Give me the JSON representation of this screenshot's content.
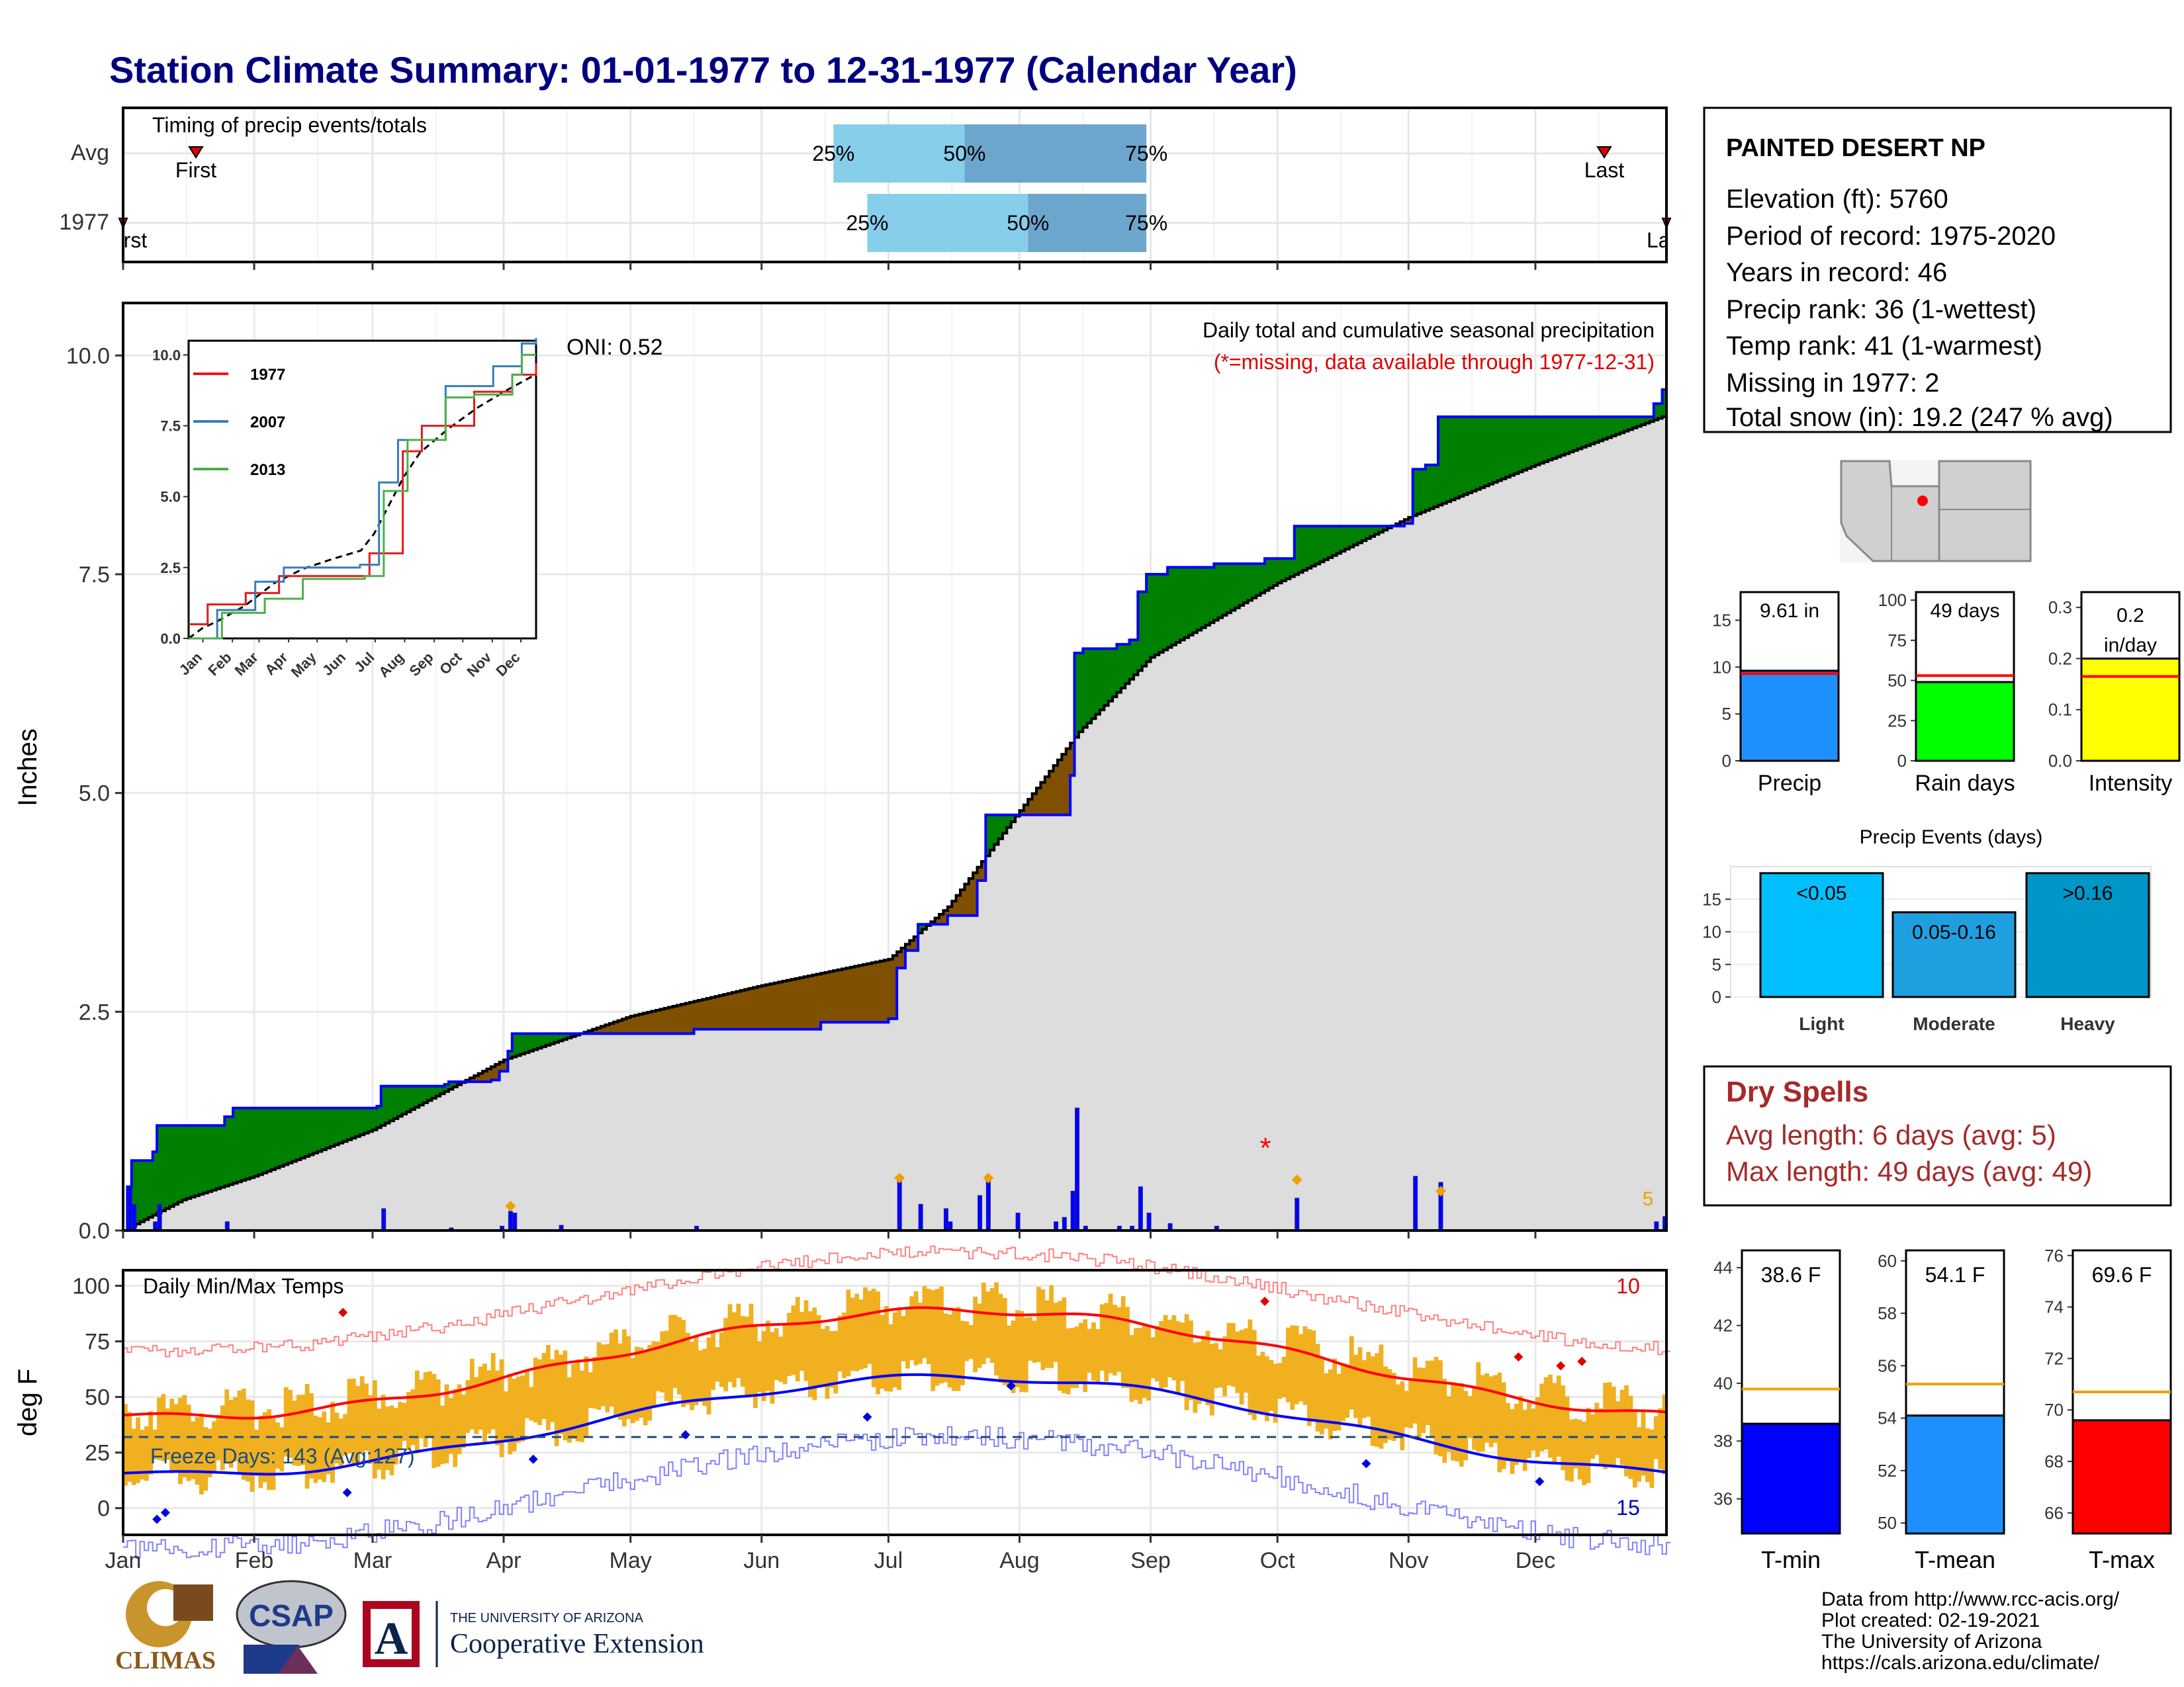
{
  "title": "Station Climate Summary: 01-01-1977 to 12-31-1977 (Calendar Year)",
  "colors": {
    "title": "#00007F",
    "wet": "#008000",
    "dry": "#7F5000",
    "gray": "#DDDDDD",
    "cumline": "#0000FF",
    "normline": "#000000",
    "bar": "#0000FF",
    "pct_light": "#87CEEB",
    "pct_dark": "#6CA6CD",
    "tmax": "#FF0000",
    "tmin": "#0000FF",
    "temp_bar": "#F0B020",
    "freeze": "#1E4E79",
    "dry_spell": "#A52A2A",
    "missing": "#FF0000"
  },
  "timing_panel": {
    "label": "Timing of precip events/totals",
    "rows": [
      {
        "row_label": "Avg",
        "first_label": "First",
        "last_label": "Last",
        "p25_date": "1977-06-18",
        "p50_date": "1977-07-19",
        "p75_date": "1977-08-31"
      },
      {
        "row_label": "1977",
        "first_label": "First",
        "last_label": "Last",
        "p25_date": "1977-06-26",
        "p50_date": "1977-08-03",
        "p75_date": "1977-08-31"
      }
    ],
    "pct_labels": [
      "25%",
      "50%",
      "75%"
    ]
  },
  "precip_panel": {
    "ylabel": "Inches",
    "yticks": [
      "0.0",
      "2.5",
      "5.0",
      "7.5",
      "10.0"
    ],
    "header": "Daily total and cumulative seasonal precipitation",
    "subheader": "(*=missing, data available through 1977-12-31)",
    "oni": "ONI: 0.52",
    "corner_value": "5"
  },
  "inset": {
    "years": [
      "1977",
      "2007",
      "2013"
    ],
    "yticks": [
      "0.0",
      "2.5",
      "5.0",
      "7.5",
      "10.0"
    ],
    "xticks": [
      "Jan",
      "Feb",
      "Mar",
      "Apr",
      "May",
      "Jun",
      "Jul",
      "Aug",
      "Sep",
      "Oct",
      "Nov",
      "Dec"
    ],
    "colors": [
      "#E41A1C",
      "#377EB8",
      "#4DAF4A"
    ]
  },
  "temp_panel": {
    "ylabel": "deg F",
    "title": "Daily Min/Max Temps",
    "yticks": [
      "0",
      "25",
      "50",
      "75",
      "100"
    ],
    "freeze_label": "Freeze Days: 143 (Avg:127)",
    "count_max": "10",
    "count_min": "15"
  },
  "months": [
    "Jan",
    "Feb",
    "Mar",
    "Apr",
    "May",
    "Jun",
    "Jul",
    "Aug",
    "Sep",
    "Oct",
    "Nov",
    "Dec"
  ],
  "station": {
    "name": "PAINTED DESERT NP",
    "lines": [
      "Elevation (ft): 5760",
      "Period of record: 1975-2020",
      "Years in record: 46",
      "Precip rank: 36 (1-wettest)",
      "Temp rank: 41 (1-warmest)",
      "Missing in 1977: 2",
      "Total snow (in): 19.2 (247 % avg)"
    ]
  },
  "gauges": [
    {
      "label": "Precip",
      "value_text": "9.61 in",
      "value": 9.61,
      "avg": 9.3,
      "max": 18,
      "ticks": [
        "0",
        "5",
        "10",
        "15"
      ],
      "tickvals": [
        0,
        5,
        10,
        15
      ],
      "color": "#1E90FF"
    },
    {
      "label": "Rain days",
      "value_text": "49 days",
      "value": 49,
      "avg": 53,
      "max": 105,
      "ticks": [
        "0",
        "25",
        "50",
        "75",
        "100"
      ],
      "tickvals": [
        0,
        25,
        50,
        75,
        100
      ],
      "color": "#00FF00"
    },
    {
      "label": "Intensity",
      "value_text": "0.2 in/day",
      "value": 0.2,
      "avg": 0.165,
      "max": 0.33,
      "ticks": [
        "0.0",
        "0.1",
        "0.2",
        "0.3"
      ],
      "tickvals": [
        0,
        0.1,
        0.2,
        0.3
      ],
      "color": "#FFFF00"
    }
  ],
  "events": {
    "title": "Precip Events (days)",
    "categories": [
      "Light",
      "Moderate",
      "Heavy"
    ],
    "bar_labels": [
      "<0.05",
      "0.05-0.16",
      ">0.16"
    ],
    "values": [
      19,
      13,
      19
    ],
    "ticks": [
      "0",
      "5",
      "10",
      "15"
    ],
    "colors": [
      "#00BFFF",
      "#1E9FE0",
      "#0096C8"
    ]
  },
  "dry_spells": {
    "title": "Dry Spells",
    "avg_line": "Avg length: 6 days (avg: 5)",
    "max_line": "Max length: 49 days (avg: 49)"
  },
  "temp_gauges": [
    {
      "label": "T-min",
      "value_text": "38.6 F",
      "value": 38.6,
      "avg": 39.8,
      "ymin": 34.8,
      "ymax": 44.6,
      "ticks": [
        "36",
        "38",
        "40",
        "42",
        "44"
      ],
      "tickvals": [
        36,
        38,
        40,
        42,
        44
      ],
      "color": "#0000FF"
    },
    {
      "label": "T-mean",
      "value_text": "54.1 F",
      "value": 54.1,
      "avg": 55.3,
      "ymin": 49.6,
      "ymax": 60.4,
      "ticks": [
        "50",
        "52",
        "54",
        "56",
        "58",
        "60"
      ],
      "tickvals": [
        50,
        52,
        54,
        56,
        58,
        60
      ],
      "color": "#1E90FF"
    },
    {
      "label": "T-max",
      "value_text": "69.6 F",
      "value": 69.6,
      "avg": 70.7,
      "ymin": 65.2,
      "ymax": 76.2,
      "ticks": [
        "66",
        "68",
        "70",
        "72",
        "74",
        "76"
      ],
      "tickvals": [
        66,
        68,
        70,
        72,
        74,
        76
      ],
      "color": "#FF0000"
    }
  ],
  "footer": {
    "lines": [
      "Data from http://www.rcc-acis.org/",
      "Plot created: 02-19-2021",
      "The University of Arizona",
      "https://cals.arizona.edu/climate/"
    ],
    "logo_climas": "CLIMAS",
    "logo_csap": "CSAP",
    "logo_ua_small": "THE UNIVERSITY OF ARIZONA",
    "logo_ua_big": "Cooperative Extension"
  },
  "chart_data": {
    "type": "area",
    "title": "Station Climate Summary: 01-01-1977 to 12-31-1977 (Calendar Year)",
    "ylabel": "Inches",
    "ylim": [
      0,
      10.5
    ],
    "cumulative_1977": [
      [
        "1977-01-01",
        0.0
      ],
      [
        "1977-01-02",
        0.5
      ],
      [
        "1977-01-03",
        0.8
      ],
      [
        "1977-01-08",
        0.9
      ],
      [
        "1977-01-09",
        1.2
      ],
      [
        "1977-01-25",
        1.3
      ],
      [
        "1977-01-27",
        1.4
      ],
      [
        "1977-03-02",
        1.42
      ],
      [
        "1977-03-03",
        1.65
      ],
      [
        "1977-03-18",
        1.67
      ],
      [
        "1977-03-19",
        1.7
      ],
      [
        "1977-03-29",
        1.72
      ],
      [
        "1977-03-31",
        1.82
      ],
      [
        "1977-04-02",
        2.05
      ],
      [
        "1977-04-03",
        2.25
      ],
      [
        "1977-04-14",
        2.25
      ],
      [
        "1977-05-16",
        2.3
      ],
      [
        "1977-06-15",
        2.38
      ],
      [
        "1977-07-01",
        2.42
      ],
      [
        "1977-07-03",
        3.0
      ],
      [
        "1977-07-05",
        3.2
      ],
      [
        "1977-07-08",
        3.5
      ],
      [
        "1977-07-15",
        3.6
      ],
      [
        "1977-07-22",
        4.0
      ],
      [
        "1977-07-24",
        4.75
      ],
      [
        "1977-07-31",
        4.75
      ],
      [
        "1977-08-09",
        4.75
      ],
      [
        "1977-08-13",
        5.2
      ],
      [
        "1977-08-14",
        6.6
      ],
      [
        "1977-08-16",
        6.65
      ],
      [
        "1977-08-24",
        6.7
      ],
      [
        "1977-08-27",
        6.75
      ],
      [
        "1977-08-29",
        7.3
      ],
      [
        "1977-08-31",
        7.5
      ],
      [
        "1977-09-05",
        7.58
      ],
      [
        "1977-09-16",
        7.62
      ],
      [
        "1977-09-28",
        7.68
      ],
      [
        "1977-10-05",
        8.05
      ],
      [
        "1977-10-31",
        8.08
      ],
      [
        "1977-11-02",
        8.7
      ],
      [
        "1977-11-05",
        8.75
      ],
      [
        "1977-11-08",
        9.3
      ],
      [
        "1977-12-28",
        9.3
      ],
      [
        "1977-12-29",
        9.45
      ],
      [
        "1977-12-31",
        9.61
      ]
    ],
    "normal_cumulative": [
      [
        "1977-01-01",
        0.0
      ],
      [
        "1977-01-15",
        0.35
      ],
      [
        "1977-02-01",
        0.62
      ],
      [
        "1977-03-01",
        1.15
      ],
      [
        "1977-04-01",
        1.95
      ],
      [
        "1977-05-01",
        2.45
      ],
      [
        "1977-06-01",
        2.8
      ],
      [
        "1977-07-01",
        3.1
      ],
      [
        "1977-07-15",
        3.7
      ],
      [
        "1977-08-01",
        4.8
      ],
      [
        "1977-08-15",
        5.7
      ],
      [
        "1977-09-01",
        6.55
      ],
      [
        "1977-10-01",
        7.4
      ],
      [
        "1977-11-01",
        8.15
      ],
      [
        "1977-12-01",
        8.75
      ],
      [
        "1977-12-31",
        9.3
      ]
    ],
    "daily_precip": [
      [
        "1977-01-02",
        0.5
      ],
      [
        "1977-01-03",
        0.3
      ],
      [
        "1977-01-08",
        0.1
      ],
      [
        "1977-01-09",
        0.3
      ],
      [
        "1977-01-25",
        0.1
      ],
      [
        "1977-03-03",
        0.25
      ],
      [
        "1977-03-19",
        0.03
      ],
      [
        "1977-03-31",
        0.05
      ],
      [
        "1977-04-02",
        0.22
      ],
      [
        "1977-04-03",
        0.2
      ],
      [
        "1977-04-14",
        0.06
      ],
      [
        "1977-05-16",
        0.05
      ],
      [
        "1977-07-03",
        0.58
      ],
      [
        "1977-07-08",
        0.3
      ],
      [
        "1977-07-14",
        0.25
      ],
      [
        "1977-07-15",
        0.1
      ],
      [
        "1977-07-22",
        0.4
      ],
      [
        "1977-07-24",
        0.6
      ],
      [
        "1977-07-31",
        0.2
      ],
      [
        "1977-08-09",
        0.1
      ],
      [
        "1977-08-11",
        0.15
      ],
      [
        "1977-08-13",
        0.45
      ],
      [
        "1977-08-14",
        1.4
      ],
      [
        "1977-08-16",
        0.05
      ],
      [
        "1977-08-24",
        0.05
      ],
      [
        "1977-08-27",
        0.05
      ],
      [
        "1977-08-29",
        0.5
      ],
      [
        "1977-08-31",
        0.2
      ],
      [
        "1977-09-05",
        0.08
      ],
      [
        "1977-09-16",
        0.05
      ],
      [
        "1977-10-05",
        0.37
      ],
      [
        "1977-11-02",
        0.62
      ],
      [
        "1977-11-08",
        0.55
      ],
      [
        "1977-12-29",
        0.1
      ],
      [
        "1977-12-31",
        0.16
      ]
    ],
    "missing_markers": [
      [
        "1977-09-28",
        0.9
      ]
    ],
    "temp_range": [
      0,
      107
    ],
    "temp_freeze_line": 32
  }
}
